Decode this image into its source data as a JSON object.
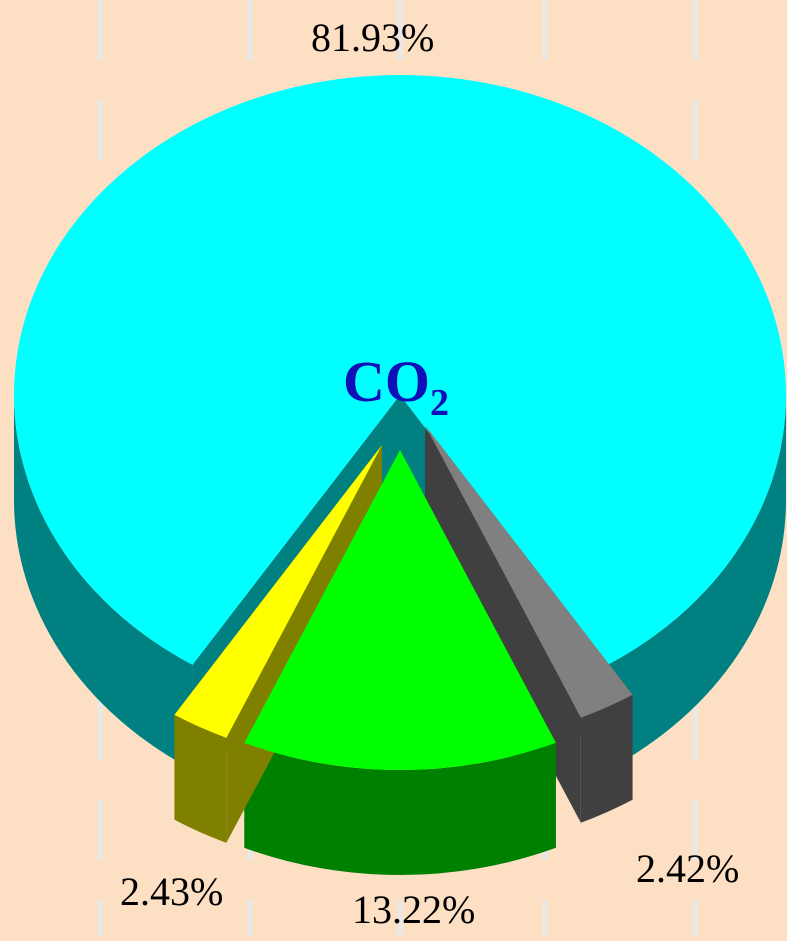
{
  "chart_data": {
    "type": "pie",
    "title": "",
    "center_label": {
      "text": "CO",
      "subscript": "2"
    },
    "slices": [
      {
        "label": "81.93%",
        "value": 81.93,
        "top_color": "#00ffff",
        "side_color": "#008080"
      },
      {
        "label": "2.42%",
        "value": 2.42,
        "top_color": "#808080",
        "side_color": "#404040"
      },
      {
        "label": "13.22%",
        "value": 13.22,
        "top_color": "#00ff00",
        "side_color": "#008000"
      },
      {
        "label": "2.43%",
        "value": 2.43,
        "top_color": "#ffff00",
        "side_color": "#808000"
      }
    ],
    "three_d": true,
    "exploded": true,
    "legend": "none"
  },
  "colors": {
    "background": "#fde0c4",
    "gridline": "#e8e8e8",
    "center_label": "#1010b8"
  }
}
